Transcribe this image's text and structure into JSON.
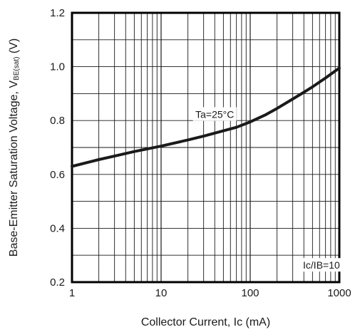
{
  "chart_data": {
    "type": "line",
    "x_scale": "log",
    "xlim": [
      1,
      1000
    ],
    "ylim": [
      0.2,
      1.2
    ],
    "x_ticks": [
      "1",
      "10",
      "100",
      "1000"
    ],
    "x_tick_values": [
      1,
      10,
      100,
      1000
    ],
    "y_ticks": [
      "0.2",
      "0.4",
      "0.6",
      "0.8",
      "1.0",
      "1.2"
    ],
    "y_tick_values": [
      0.2,
      0.4,
      0.6,
      0.8,
      1.0,
      1.2
    ],
    "xlabel": "Collector Current, Ic (mA)",
    "ylabel": {
      "main": "Base-Emitter Saturation Voltage, V",
      "subscript": "BE(sat)",
      "unit": " (V)"
    },
    "grid": true,
    "annotations": [
      {
        "id": "ta",
        "text": "Ta=25°C",
        "x": 40,
        "y": 0.815
      },
      {
        "id": "ratio",
        "text": "Ic/IB=10",
        "x": 630,
        "y": 0.255
      }
    ],
    "series": [
      {
        "x": [
          1,
          2,
          3,
          5,
          10,
          20,
          30,
          50,
          70,
          100,
          150,
          200,
          300,
          400,
          500,
          700,
          1000
        ],
        "y": [
          0.63,
          0.655,
          0.668,
          0.685,
          0.705,
          0.728,
          0.742,
          0.762,
          0.775,
          0.795,
          0.822,
          0.845,
          0.88,
          0.905,
          0.925,
          0.958,
          0.995
        ]
      }
    ],
    "colors": {
      "line": "#1a1a1a",
      "grid": "#1a1a1a",
      "frame": "#000000"
    }
  }
}
